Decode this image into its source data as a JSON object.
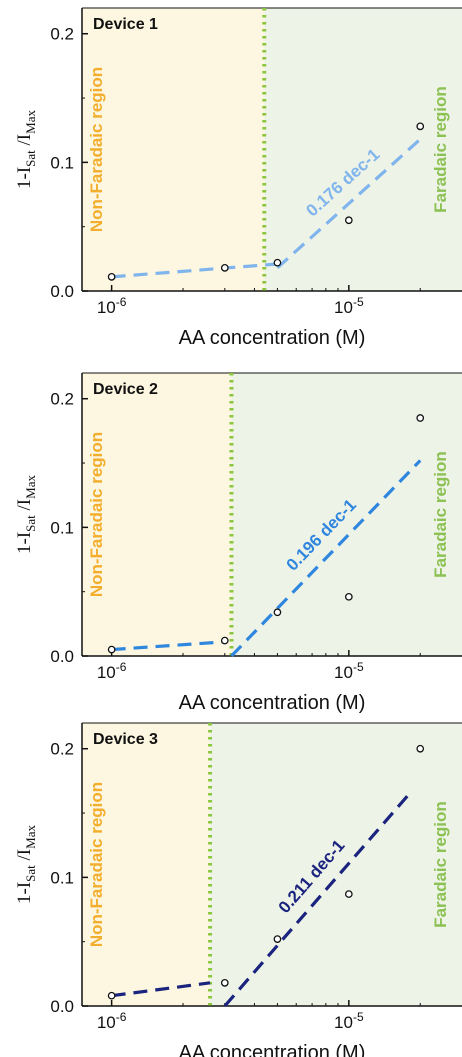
{
  "chart_data": [
    {
      "type": "scatter",
      "title": "Device 1",
      "xlabel": "AA concentration (M)",
      "ylabel": {
        "base": "1-I",
        "sub1": "Sat",
        "mid": " /I",
        "sub2": "Max"
      },
      "xscale": "log",
      "xlim": [
        7.5e-07,
        3e-05
      ],
      "ylim": [
        0,
        0.22
      ],
      "xticks": [
        {
          "value": 1e-06,
          "base": "10",
          "exp": "-6"
        },
        {
          "value": 1e-05,
          "base": "10",
          "exp": "-5"
        }
      ],
      "yticks": [
        {
          "value": 0.0,
          "label": "0.0"
        },
        {
          "value": 0.1,
          "label": "0.1"
        },
        {
          "value": 0.2,
          "label": "0.2"
        }
      ],
      "points": {
        "x": [
          1e-06,
          3e-06,
          5e-06,
          1e-05,
          2e-05
        ],
        "y": [
          0.011,
          0.018,
          0.022,
          0.055,
          0.128
        ]
      },
      "fit_segments": [
        {
          "x": [
            1e-06,
            5e-06
          ],
          "y": [
            0.011,
            0.021
          ]
        },
        {
          "x": [
            5e-06,
            2e-05
          ],
          "y": [
            0.018,
            0.118
          ]
        }
      ],
      "fit_color": "#7fb4ec",
      "slope_label": "0.176 dec-1",
      "boundary_x": 4.4e-06,
      "regions": {
        "left_label": "Non-Faradaic region",
        "right_label": "Faradaic region",
        "left_fill": "#fdf6e0",
        "right_fill": "#eef3e8",
        "left_text_color": "#f2ae2c",
        "right_text_color": "#8cc153",
        "boundary_color": "#8cc63f"
      }
    },
    {
      "type": "scatter",
      "title": "Device 2",
      "xlabel": "AA concentration (M)",
      "ylabel": {
        "base": "1-I",
        "sub1": "Sat",
        "mid": " /I",
        "sub2": "Max"
      },
      "xscale": "log",
      "xlim": [
        7.5e-07,
        3e-05
      ],
      "ylim": [
        0,
        0.22
      ],
      "xticks": [
        {
          "value": 1e-06,
          "base": "10",
          "exp": "-6"
        },
        {
          "value": 1e-05,
          "base": "10",
          "exp": "-5"
        }
      ],
      "yticks": [
        {
          "value": 0.0,
          "label": "0.0"
        },
        {
          "value": 0.1,
          "label": "0.1"
        },
        {
          "value": 0.2,
          "label": "0.2"
        }
      ],
      "points": {
        "x": [
          1e-06,
          3e-06,
          5e-06,
          1e-05,
          2e-05
        ],
        "y": [
          0.005,
          0.012,
          0.034,
          0.046,
          0.185
        ]
      },
      "fit_segments": [
        {
          "x": [
            1e-06,
            3e-06
          ],
          "y": [
            0.005,
            0.011
          ]
        },
        {
          "x": [
            3.2e-06,
            2e-05
          ],
          "y": [
            0.0,
            0.152
          ]
        }
      ],
      "fit_color": "#2f86de",
      "slope_label": "0.196 dec-1",
      "boundary_x": 3.2e-06,
      "regions": {
        "left_label": "Non-Faradaic region",
        "right_label": "Faradaic region",
        "left_fill": "#fdf6e0",
        "right_fill": "#eef3e8",
        "left_text_color": "#f2ae2c",
        "right_text_color": "#8cc153",
        "boundary_color": "#8cc63f"
      }
    },
    {
      "type": "scatter",
      "title": "Device 3",
      "xlabel": "AA concentration (M)",
      "ylabel": {
        "base": "1-I",
        "sub1": "Sat",
        "mid": " /I",
        "sub2": "Max"
      },
      "xscale": "log",
      "xlim": [
        7.5e-07,
        3e-05
      ],
      "ylim": [
        0,
        0.22
      ],
      "xticks": [
        {
          "value": 1e-06,
          "base": "10",
          "exp": "-6"
        },
        {
          "value": 1e-05,
          "base": "10",
          "exp": "-5"
        }
      ],
      "yticks": [
        {
          "value": 0.0,
          "label": "0.0"
        },
        {
          "value": 0.1,
          "label": "0.1"
        },
        {
          "value": 0.2,
          "label": "0.2"
        }
      ],
      "points": {
        "x": [
          1e-06,
          3e-06,
          5e-06,
          1e-05,
          2e-05
        ],
        "y": [
          0.008,
          0.018,
          0.052,
          0.087,
          0.2
        ]
      },
      "fit_segments": [
        {
          "x": [
            1e-06,
            2.6e-06
          ],
          "y": [
            0.008,
            0.018
          ]
        },
        {
          "x": [
            3e-06,
            1.8e-05
          ],
          "y": [
            0.0,
            0.165
          ]
        }
      ],
      "fit_color": "#1a237e",
      "slope_label": "0.211 dec-1",
      "boundary_x": 2.6e-06,
      "regions": {
        "left_label": "Non-Faradaic region",
        "right_label": "Faradaic region",
        "left_fill": "#fdf6e0",
        "right_fill": "#eef3e8",
        "left_text_color": "#f2ae2c",
        "right_text_color": "#8cc153",
        "boundary_color": "#8cc63f"
      }
    }
  ]
}
